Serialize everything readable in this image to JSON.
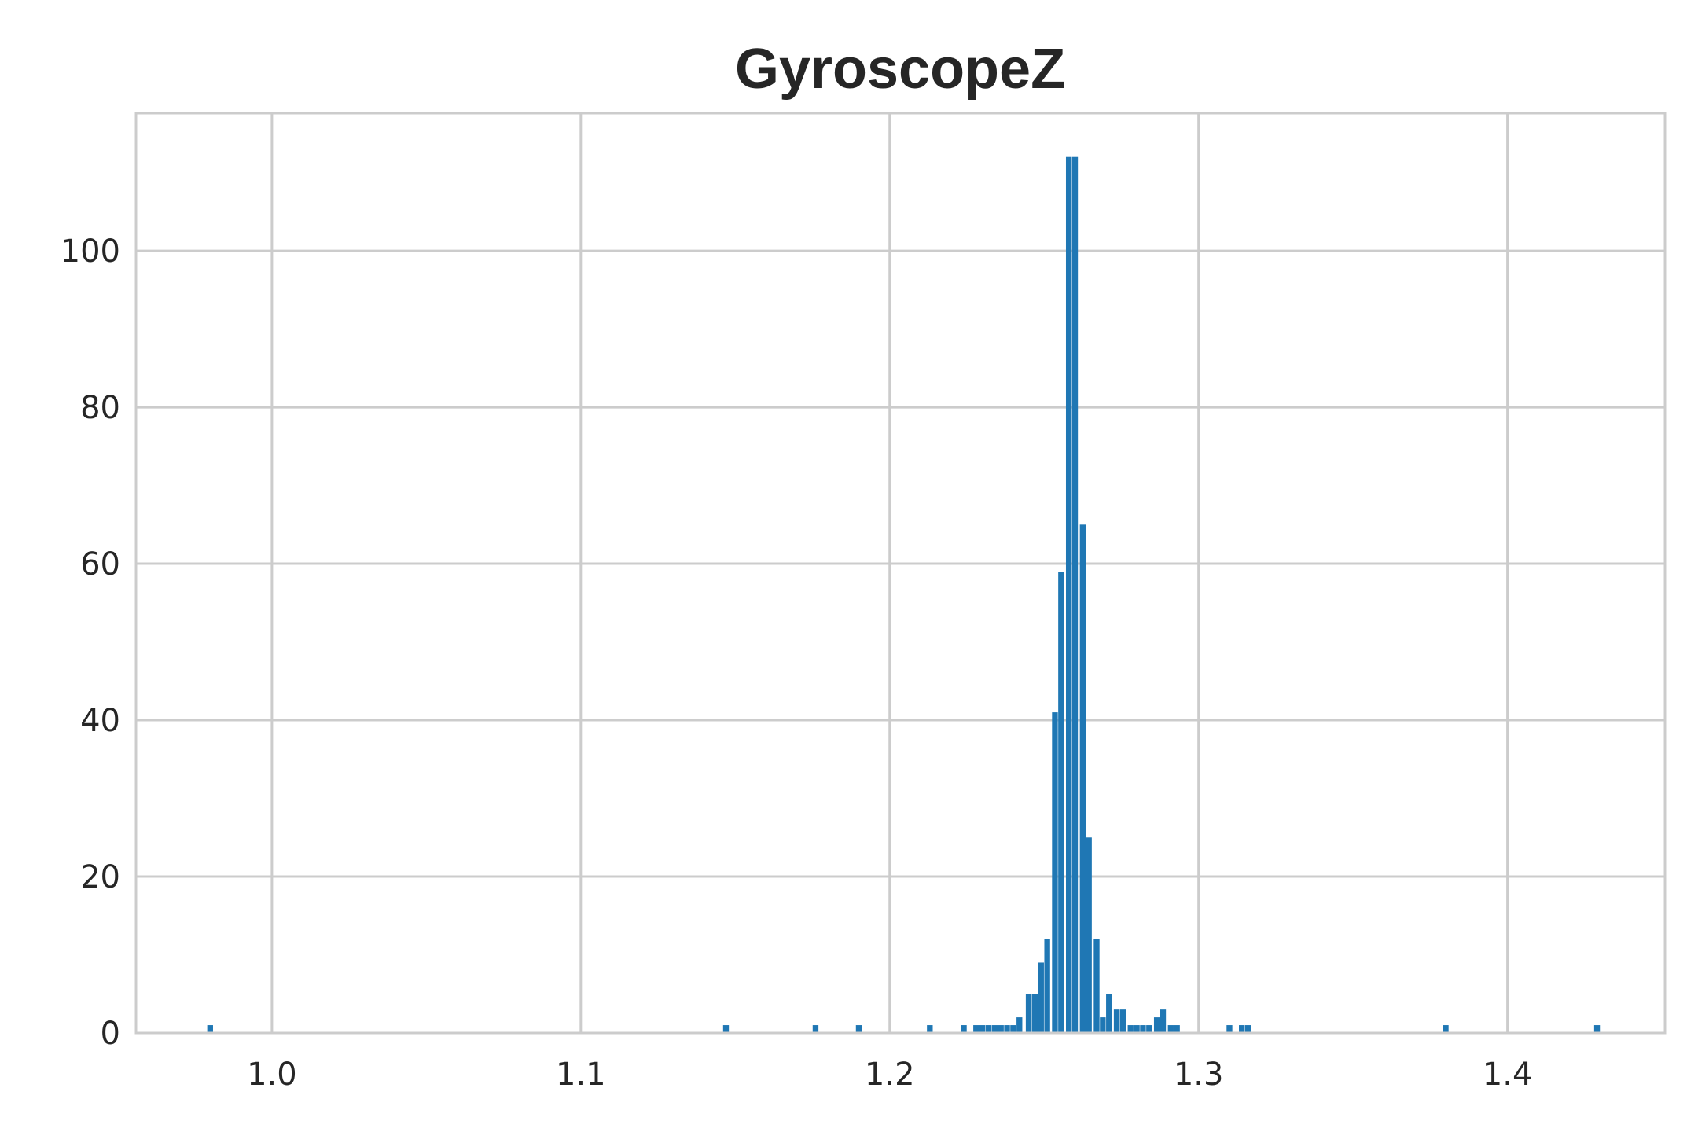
{
  "chart_data": {
    "type": "bar",
    "title": "GyroscopeZ",
    "xlabel": "",
    "ylabel": "",
    "xlim": [
      0.956,
      1.451
    ],
    "ylim": [
      0,
      117.6
    ],
    "grid": true,
    "x_ticks": [
      1.0,
      1.1,
      1.2,
      1.3,
      1.4
    ],
    "x_tick_labels": [
      "1.0",
      "1.1",
      "1.2",
      "1.3",
      "1.4"
    ],
    "y_ticks": [
      0,
      20,
      40,
      60,
      80,
      100
    ],
    "y_tick_labels": [
      "0",
      "20",
      "40",
      "60",
      "80",
      "100"
    ],
    "bin_width": 0.00225,
    "bar_color": "#1f77b4",
    "series": [
      {
        "x": [
          0.98,
          1.147,
          1.176,
          1.19,
          1.213,
          1.224,
          1.228,
          1.23,
          1.232,
          1.234,
          1.236,
          1.238,
          1.24,
          1.242,
          1.245,
          1.247,
          1.249,
          1.251,
          1.2535,
          1.2555,
          1.258,
          1.26,
          1.2625,
          1.2645,
          1.267,
          1.269,
          1.271,
          1.2735,
          1.2755,
          1.278,
          1.28,
          1.282,
          1.284,
          1.2865,
          1.2885,
          1.291,
          1.293,
          1.31,
          1.314,
          1.316,
          1.38,
          1.429
        ],
        "values": [
          1,
          1,
          1,
          1,
          1,
          1,
          1,
          1,
          1,
          1,
          1,
          1,
          1,
          2,
          5,
          5,
          9,
          12,
          41,
          59,
          112,
          112,
          65,
          25,
          12,
          2,
          5,
          3,
          3,
          1,
          1,
          1,
          1,
          2,
          3,
          1,
          1,
          1,
          1,
          1,
          1,
          1
        ]
      }
    ]
  }
}
